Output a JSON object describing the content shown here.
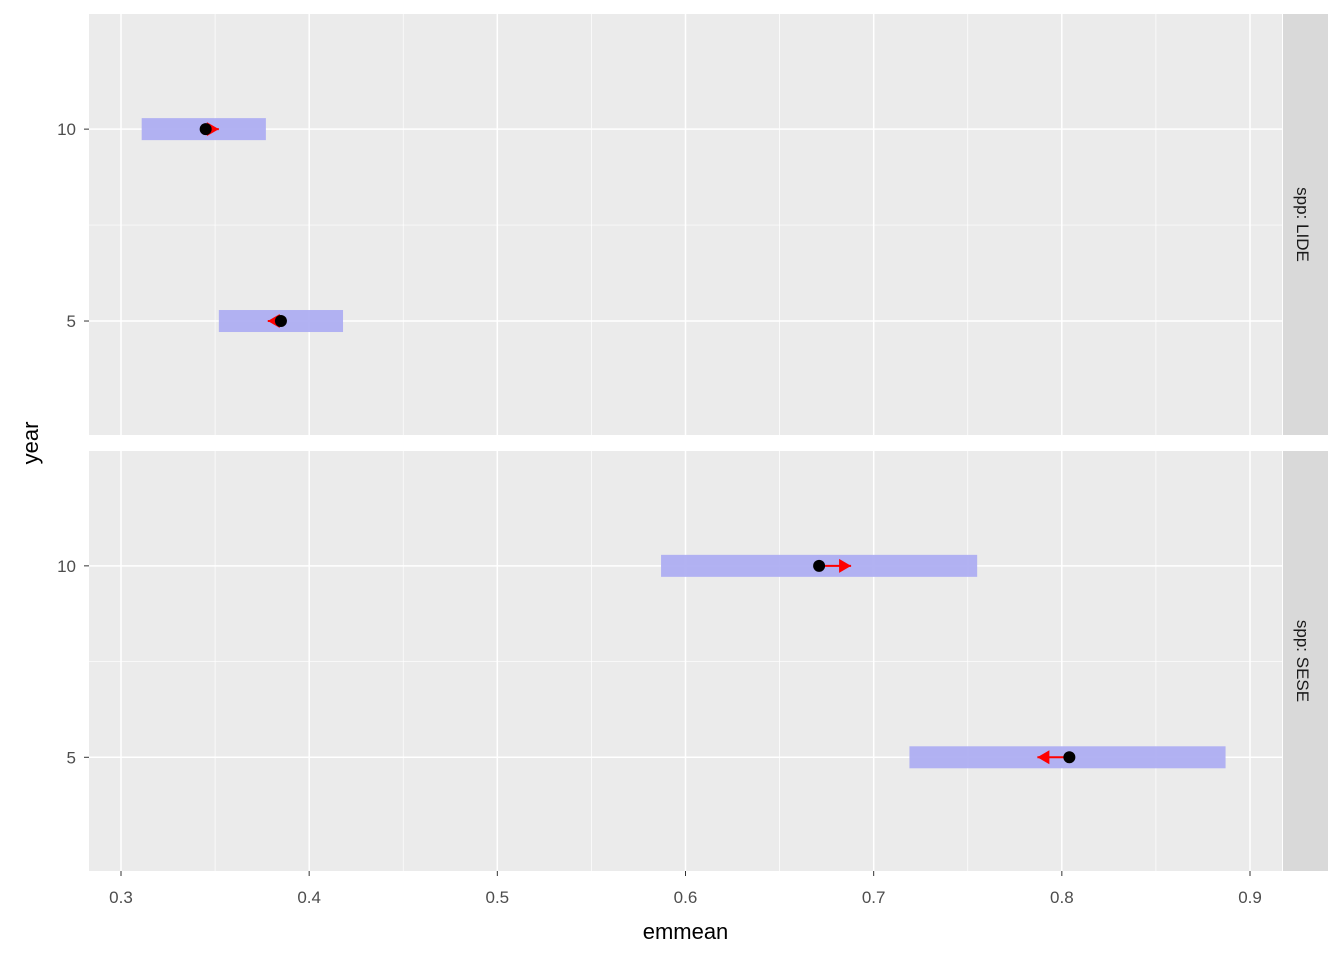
{
  "chart_data": {
    "type": "scatter",
    "xlabel": "emmean",
    "ylabel": "year",
    "xlim": [
      0.283,
      0.917
    ],
    "ylim": [
      2.03,
      13.0
    ],
    "x_ticks": [
      "0.3",
      "0.4",
      "0.5",
      "0.6",
      "0.7",
      "0.8",
      "0.9"
    ],
    "y_ticks": [
      "5",
      "10"
    ],
    "grid": true,
    "colors": {
      "panel": "#EBEBEB",
      "strip": "#D9D9D9",
      "ci_bar": "#AEAEF2",
      "point": "#000000",
      "arrow": "#FF0000"
    },
    "facets": [
      {
        "label": "spp: LIDE",
        "rows": [
          {
            "year": 10,
            "emmean": 0.345,
            "lower": 0.311,
            "upper": 0.377,
            "arrow_to": 0.352
          },
          {
            "year": 5,
            "emmean": 0.385,
            "lower": 0.352,
            "upper": 0.418,
            "arrow_to": 0.378
          }
        ]
      },
      {
        "label": "spp: SESE",
        "rows": [
          {
            "year": 10,
            "emmean": 0.671,
            "lower": 0.587,
            "upper": 0.755,
            "arrow_to": 0.688
          },
          {
            "year": 5,
            "emmean": 0.804,
            "lower": 0.719,
            "upper": 0.887,
            "arrow_to": 0.787
          }
        ]
      }
    ]
  }
}
